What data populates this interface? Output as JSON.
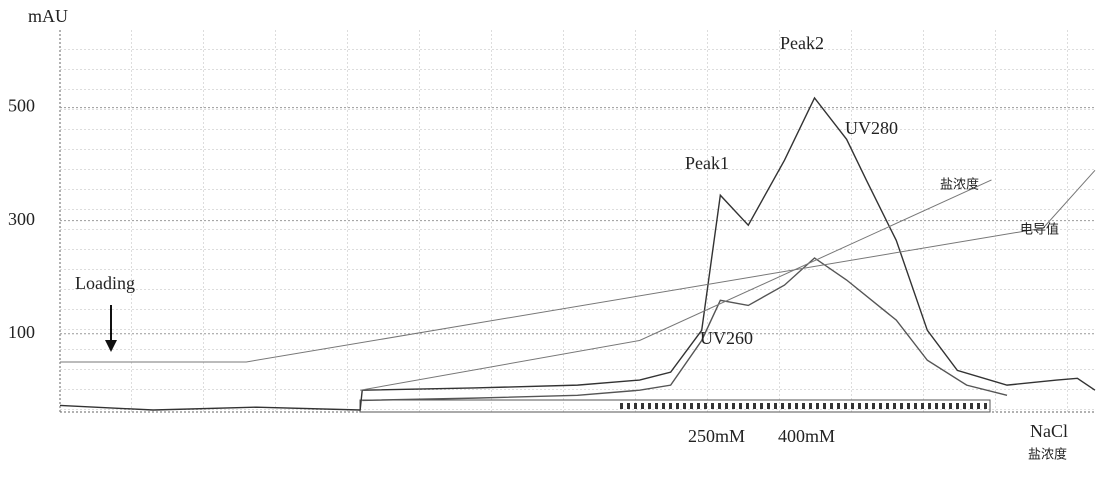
{
  "chart_data": {
    "type": "line",
    "y_label": "mAU",
    "xlim": [
      0,
      100
    ],
    "ylim": [
      -35,
      655
    ],
    "yticks": [
      100,
      300,
      500
    ],
    "grid": true,
    "series": [
      {
        "name": "UV280",
        "color": "#333333",
        "x": [
          0,
          9,
          19,
          29,
          29.2,
          40,
          50,
          56,
          59,
          62,
          63.8,
          66.5,
          70,
          72.9,
          76,
          77.9,
          80.8,
          83.8,
          86.7,
          91.5,
          96.3,
          98.3,
          100
        ],
        "values": [
          -27,
          -35,
          -30,
          -35,
          0,
          4,
          9,
          18,
          32,
          106,
          345,
          292,
          407,
          517,
          444,
          372,
          265,
          106,
          35,
          9,
          18,
          21,
          0
        ]
      },
      {
        "name": "UV260",
        "color": "#555555",
        "x": [
          29.2,
          40,
          50,
          56,
          59,
          62,
          63.8,
          66.5,
          70,
          72.9,
          76,
          80.8,
          83.8,
          87.6,
          91.5
        ],
        "values": [
          -18,
          -14,
          -9,
          0,
          9,
          88,
          159,
          150,
          186,
          234,
          195,
          124,
          53,
          9,
          -9
        ]
      },
      {
        "name": "盐浓度",
        "color": "#777777",
        "x": [
          29,
          56,
          90
        ],
        "values": [
          0,
          88,
          372
        ]
      },
      {
        "name": "电导值",
        "color": "#777777",
        "x": [
          0,
          18,
          95,
          100
        ],
        "values": [
          50,
          50,
          287,
          389
        ]
      }
    ],
    "annotations": [
      "Loading",
      "Peak1",
      "Peak2",
      "250mM",
      "400mM",
      "NaCl",
      "盐浓度"
    ]
  }
}
